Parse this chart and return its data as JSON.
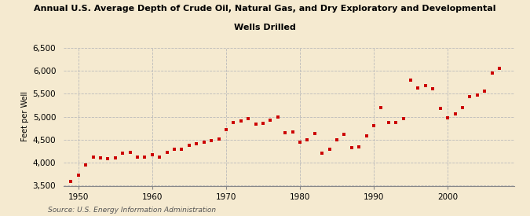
{
  "title_line1": "Annual U.S. Average Depth of Crude Oil, Natural Gas, and Dry Exploratory and Developmental",
  "title_line2": "Wells Drilled",
  "ylabel": "Feet per Well",
  "source": "Source: U.S. Energy Information Administration",
  "background_color": "#f5ead0",
  "marker_color": "#cc0000",
  "years": [
    1949,
    1950,
    1951,
    1952,
    1953,
    1954,
    1955,
    1956,
    1957,
    1958,
    1959,
    1960,
    1961,
    1962,
    1963,
    1964,
    1965,
    1966,
    1967,
    1968,
    1969,
    1970,
    1971,
    1972,
    1973,
    1974,
    1975,
    1976,
    1977,
    1978,
    1979,
    1980,
    1981,
    1982,
    1983,
    1984,
    1985,
    1986,
    1987,
    1988,
    1989,
    1990,
    1991,
    1992,
    1993,
    1994,
    1995,
    1996,
    1997,
    1998,
    1999,
    2000,
    2001,
    2002,
    2003,
    2004,
    2005,
    2006,
    2007
  ],
  "values": [
    3600,
    3730,
    3950,
    4120,
    4100,
    4080,
    4100,
    4200,
    4230,
    4130,
    4130,
    4170,
    4120,
    4230,
    4290,
    4300,
    4370,
    4420,
    4440,
    4480,
    4520,
    4720,
    4870,
    4900,
    4950,
    4830,
    4850,
    4920,
    5000,
    4650,
    4670,
    4450,
    4500,
    4640,
    4200,
    4300,
    4500,
    4620,
    4320,
    4350,
    4580,
    4800,
    5190,
    4870,
    4870,
    4960,
    5790,
    5620,
    5670,
    5600,
    5180,
    4980,
    5060,
    5200,
    5440,
    5470,
    5550,
    5950,
    6050
  ],
  "ylim": [
    3500,
    6500
  ],
  "xlim": [
    1948,
    2009
  ],
  "yticks": [
    3500,
    4000,
    4500,
    5000,
    5500,
    6000,
    6500
  ],
  "xticks": [
    1950,
    1960,
    1970,
    1980,
    1990,
    2000
  ]
}
